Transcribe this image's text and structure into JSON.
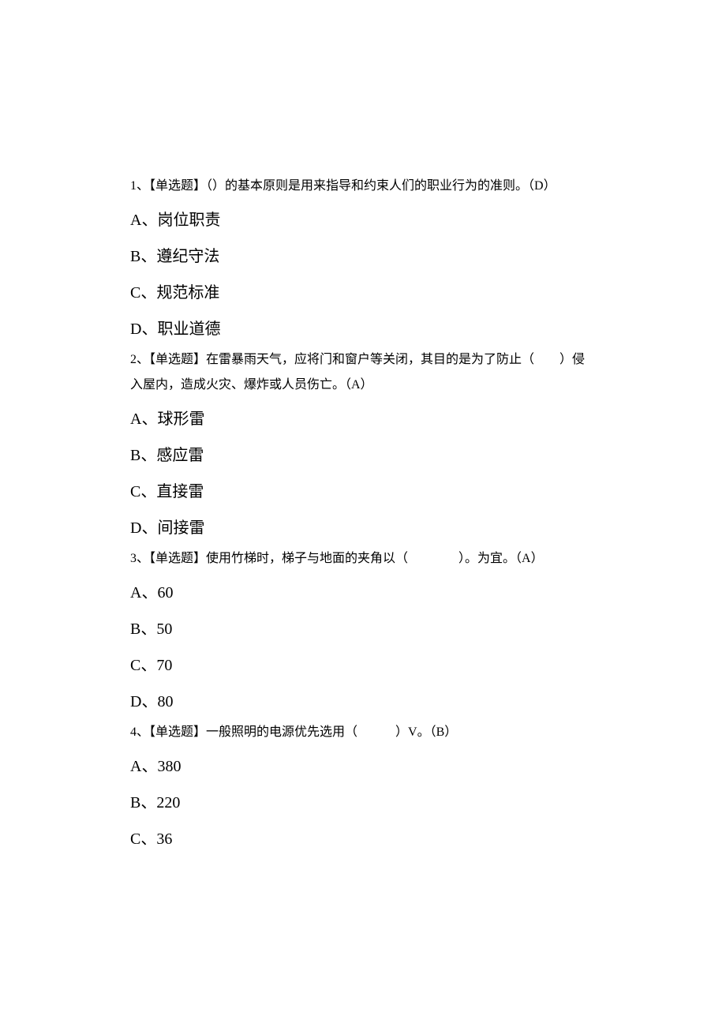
{
  "questions": [
    {
      "number": "1",
      "type": "【单选题】",
      "stem_parts": [
        "（）的基本原则是用来指导和约束人们的职业行为的准则。（D）"
      ],
      "options": [
        {
          "letter": "A",
          "text": "岗位职责"
        },
        {
          "letter": "B",
          "text": "遵纪守法"
        },
        {
          "letter": "C",
          "text": "规范标准"
        },
        {
          "letter": "D",
          "text": "职业道德"
        }
      ]
    },
    {
      "number": "2",
      "type": "【单选题】",
      "stem_parts": [
        "在雷暴雨天气，应将门和窗户等关闭，其目的是为了防止（　　）侵入屋内，造成火灾、爆炸或人员伤亡。（A）"
      ],
      "options": [
        {
          "letter": "A",
          "text": "球形雷"
        },
        {
          "letter": "B",
          "text": "感应雷"
        },
        {
          "letter": "C",
          "text": "直接雷"
        },
        {
          "letter": "D",
          "text": "间接雷"
        }
      ]
    },
    {
      "number": "3",
      "type": "【单选题】",
      "stem_parts": [
        "使用竹梯时，梯子与地面的夹角以（　　　　）。为宜。（A）"
      ],
      "options": [
        {
          "letter": "A",
          "text": "60"
        },
        {
          "letter": "B",
          "text": "50"
        },
        {
          "letter": "C",
          "text": "70"
        },
        {
          "letter": "D",
          "text": "80"
        }
      ]
    },
    {
      "number": "4",
      "type": "【单选题】",
      "stem_parts": [
        "一般照明的电源优先选用（　　　）V。（B）"
      ],
      "options": [
        {
          "letter": "A",
          "text": "380"
        },
        {
          "letter": "B",
          "text": "220"
        },
        {
          "letter": "C",
          "text": "36"
        }
      ]
    }
  ],
  "styling": {
    "background_color": "#ffffff",
    "text_color": "#000000",
    "stem_fontsize": 16,
    "option_fontsize": 20,
    "font_family": "SimSun"
  }
}
